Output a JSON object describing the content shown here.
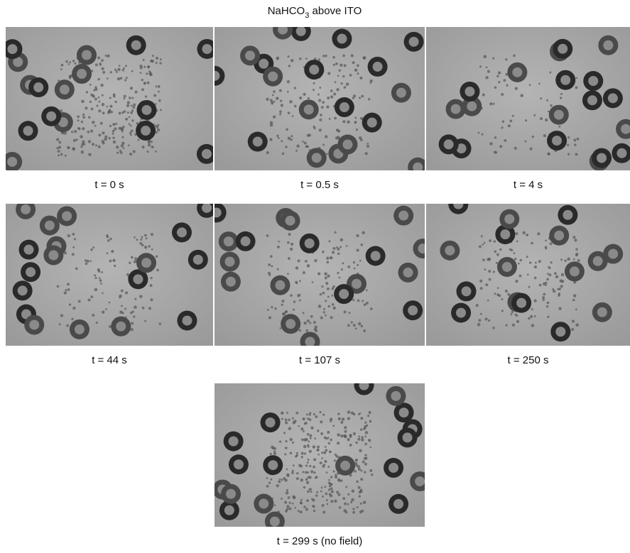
{
  "title": {
    "main": "NaHCO",
    "subscript": "3",
    "rest": " above ITO"
  },
  "panels": [
    {
      "caption": "t = 0 s"
    },
    {
      "caption": "t = 0.5 s"
    },
    {
      "caption": "t = 4 s"
    },
    {
      "caption": "t = 44 s"
    },
    {
      "caption": "t = 107 s"
    },
    {
      "caption": "t = 250 s"
    },
    {
      "caption": "t = 299 s (no field)"
    }
  ]
}
